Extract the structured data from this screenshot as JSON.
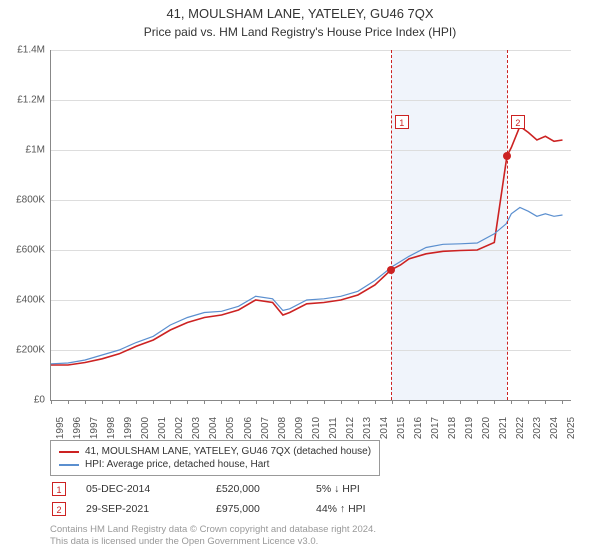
{
  "title": "41, MOULSHAM LANE, YATELEY, GU46 7QX",
  "subtitle": "Price paid vs. HM Land Registry's House Price Index (HPI)",
  "chart": {
    "type": "line",
    "ylim": [
      0,
      1400000
    ],
    "ytick_step": 200000,
    "yticks": [
      {
        "v": 0,
        "label": "£0"
      },
      {
        "v": 200000,
        "label": "£200K"
      },
      {
        "v": 400000,
        "label": "£400K"
      },
      {
        "v": 600000,
        "label": "£600K"
      },
      {
        "v": 800000,
        "label": "£800K"
      },
      {
        "v": 1000000,
        "label": "£1M"
      },
      {
        "v": 1200000,
        "label": "£1.2M"
      },
      {
        "v": 1400000,
        "label": "£1.4M"
      }
    ],
    "xlim": [
      1995,
      2025.5
    ],
    "xticks": [
      1995,
      1996,
      1997,
      1998,
      1999,
      2000,
      2001,
      2002,
      2003,
      2004,
      2005,
      2006,
      2007,
      2008,
      2009,
      2010,
      2011,
      2012,
      2013,
      2014,
      2015,
      2016,
      2017,
      2018,
      2019,
      2020,
      2021,
      2022,
      2023,
      2024,
      2025
    ],
    "background_color": "#ffffff",
    "grid_color": "#dddddd",
    "bands": [
      {
        "from": 2014.93,
        "to": 2021.74,
        "color": "#f0f4fb"
      }
    ],
    "series": [
      {
        "name": "red",
        "label": "41, MOULSHAM LANE, YATELEY, GU46 7QX (detached house)",
        "color": "#cc2222",
        "width": 1.6,
        "data": [
          [
            1995,
            140000
          ],
          [
            1996,
            140000
          ],
          [
            1997,
            150000
          ],
          [
            1998,
            165000
          ],
          [
            1999,
            185000
          ],
          [
            2000,
            215000
          ],
          [
            2001,
            240000
          ],
          [
            2002,
            280000
          ],
          [
            2003,
            310000
          ],
          [
            2004,
            330000
          ],
          [
            2005,
            340000
          ],
          [
            2006,
            360000
          ],
          [
            2007,
            400000
          ],
          [
            2008,
            390000
          ],
          [
            2008.6,
            340000
          ],
          [
            2009,
            350000
          ],
          [
            2010,
            385000
          ],
          [
            2011,
            390000
          ],
          [
            2012,
            400000
          ],
          [
            2013,
            420000
          ],
          [
            2014,
            460000
          ],
          [
            2014.93,
            520000
          ],
          [
            2015.5,
            540000
          ],
          [
            2016,
            565000
          ],
          [
            2017,
            585000
          ],
          [
            2018,
            595000
          ],
          [
            2019,
            598000
          ],
          [
            2020,
            600000
          ],
          [
            2021,
            630000
          ],
          [
            2021.74,
            975000
          ],
          [
            2022,
            1010000
          ],
          [
            2022.5,
            1095000
          ],
          [
            2023,
            1070000
          ],
          [
            2023.5,
            1040000
          ],
          [
            2024,
            1055000
          ],
          [
            2024.5,
            1035000
          ],
          [
            2025,
            1040000
          ]
        ]
      },
      {
        "name": "blue",
        "label": "HPI: Average price, detached house, Hart",
        "color": "#5b8fcf",
        "width": 1.2,
        "data": [
          [
            1995,
            145000
          ],
          [
            1996,
            148000
          ],
          [
            1997,
            160000
          ],
          [
            1998,
            180000
          ],
          [
            1999,
            200000
          ],
          [
            2000,
            230000
          ],
          [
            2001,
            255000
          ],
          [
            2002,
            300000
          ],
          [
            2003,
            330000
          ],
          [
            2004,
            350000
          ],
          [
            2005,
            355000
          ],
          [
            2006,
            375000
          ],
          [
            2007,
            415000
          ],
          [
            2008,
            405000
          ],
          [
            2008.6,
            358000
          ],
          [
            2009,
            365000
          ],
          [
            2010,
            400000
          ],
          [
            2011,
            405000
          ],
          [
            2012,
            415000
          ],
          [
            2013,
            435000
          ],
          [
            2014,
            478000
          ],
          [
            2015,
            533000
          ],
          [
            2016,
            575000
          ],
          [
            2017,
            610000
          ],
          [
            2018,
            623000
          ],
          [
            2019,
            625000
          ],
          [
            2020,
            628000
          ],
          [
            2021,
            665000
          ],
          [
            2021.7,
            705000
          ],
          [
            2022,
            745000
          ],
          [
            2022.5,
            770000
          ],
          [
            2023,
            755000
          ],
          [
            2023.5,
            735000
          ],
          [
            2024,
            745000
          ],
          [
            2024.5,
            735000
          ],
          [
            2025,
            740000
          ]
        ]
      }
    ],
    "markers": [
      {
        "n": "1",
        "x": 2014.93,
        "y": 520000,
        "box_y": 1140000
      },
      {
        "n": "2",
        "x": 2021.74,
        "y": 975000,
        "box_y": 1140000
      }
    ]
  },
  "legend": {
    "red_label": "41, MOULSHAM LANE, YATELEY, GU46 7QX (detached house)",
    "blue_label": "HPI: Average price, detached house, Hart"
  },
  "transactions": [
    {
      "n": "1",
      "date": "05-DEC-2014",
      "price": "£520,000",
      "delta": "5% ↓ HPI"
    },
    {
      "n": "2",
      "date": "29-SEP-2021",
      "price": "£975,000",
      "delta": "44% ↑ HPI"
    }
  ],
  "footer_line1": "Contains HM Land Registry data © Crown copyright and database right 2024.",
  "footer_line2": "This data is licensed under the Open Government Licence v3.0."
}
